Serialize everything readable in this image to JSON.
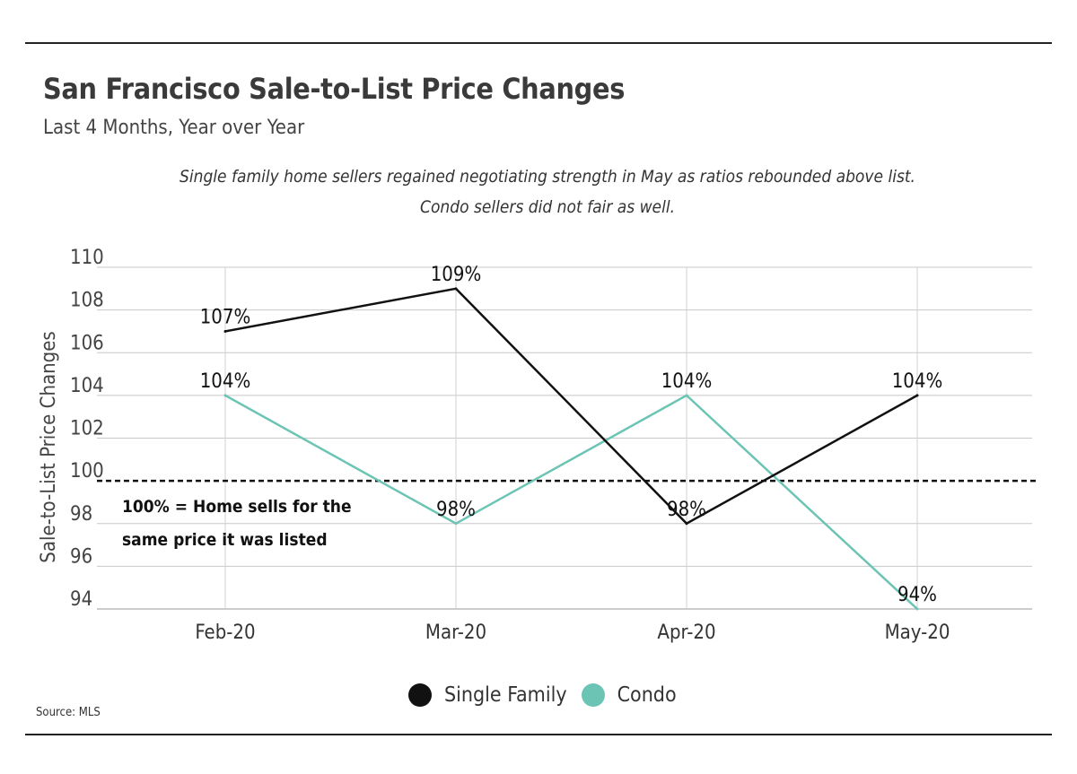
{
  "title": "San Francisco Sale-to-List Price Changes",
  "subtitle": "Last 4 Months, Year over Year",
  "note_lines": [
    "Single family home sellers regained negotiating strength in May as ratios rebounded above list.",
    "Condo sellers did not fair as well."
  ],
  "source": "Source: MLS",
  "chart_data": {
    "type": "line",
    "categories": [
      "Feb-20",
      "Mar-20",
      "Apr-20",
      "May-20"
    ],
    "series": [
      {
        "name": "Single Family",
        "values": [
          107,
          109,
          98,
          104
        ],
        "labels": [
          "107%",
          "109%",
          "98%",
          "104%"
        ],
        "color": "#111111"
      },
      {
        "name": "Condo",
        "values": [
          104,
          98,
          104,
          94
        ],
        "labels": [
          "104%",
          "98%",
          "104%",
          "94%"
        ],
        "color": "#6cc4b4"
      }
    ],
    "ylabel": "Sale-to-List Price Changes",
    "ylim": [
      94,
      110
    ],
    "yticks": [
      "94",
      "96",
      "98",
      "100",
      "102",
      "104",
      "106",
      "108",
      "110"
    ],
    "grid": true,
    "reference_line": {
      "value": 100,
      "style": "dashed",
      "color": "#111111"
    },
    "annotation_lines": [
      "100% = Home sells for the",
      "same price it was listed"
    ],
    "legend_position": "bottom-center"
  }
}
